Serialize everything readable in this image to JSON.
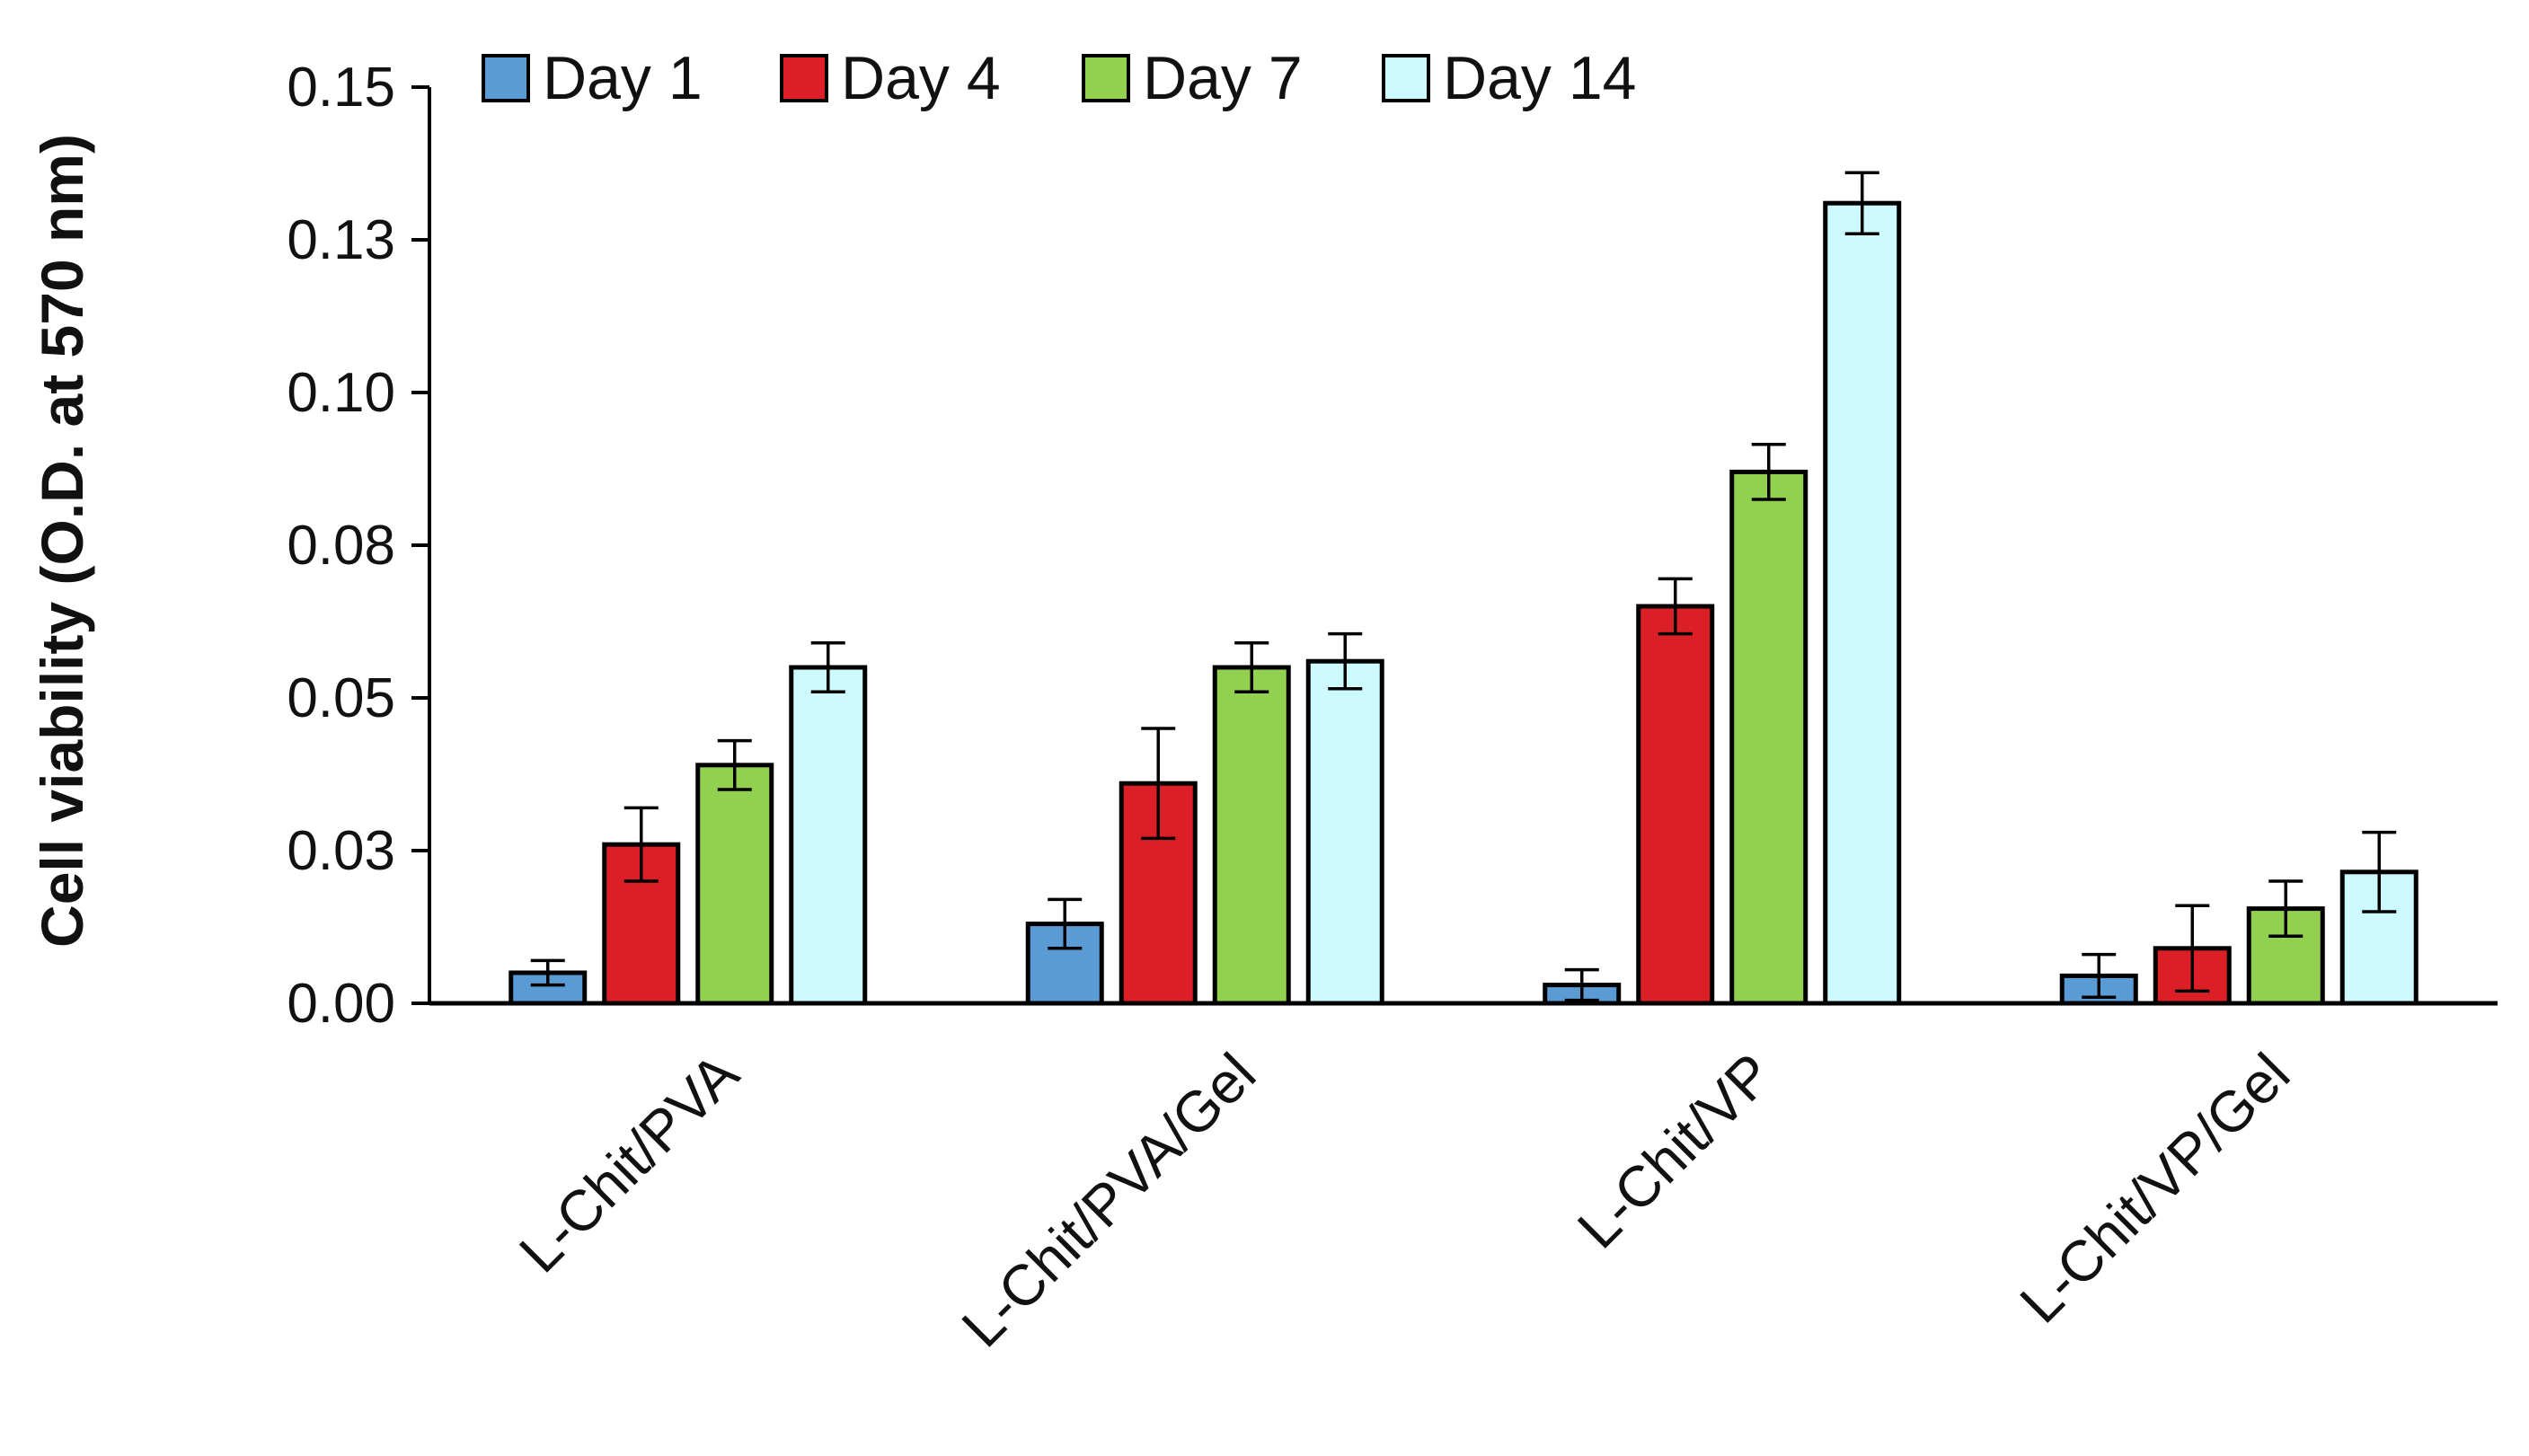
{
  "chart_data": {
    "type": "bar",
    "title": "",
    "xlabel": "",
    "ylabel": "Cell viability (O.D. at 570 nm)",
    "ylim": [
      0,
      0.15
    ],
    "yticks": [
      0,
      0.025,
      0.05,
      0.075,
      0.1,
      0.125,
      0.15
    ],
    "ytick_labels": [
      "0.00",
      "0.03",
      "0.05",
      "0.08",
      "0.10",
      "0.13",
      "0.15"
    ],
    "categories": [
      "L-Chit/PVA",
      "L-Chit/PVA/Gel",
      "L-Chit/VP",
      "L-Chit/VP/Gel"
    ],
    "legend_position": "top-left",
    "grid": false,
    "series": [
      {
        "name": "Day 1",
        "color": "#5b9bd5",
        "values": [
          0.005,
          0.013,
          0.003,
          0.0045
        ],
        "errors": [
          0.002,
          0.004,
          0.0025,
          0.0035
        ]
      },
      {
        "name": "Day 4",
        "color": "#dc1f26",
        "values": [
          0.026,
          0.036,
          0.065,
          0.009
        ],
        "errors": [
          0.006,
          0.009,
          0.0045,
          0.007
        ]
      },
      {
        "name": "Day 7",
        "color": "#92d050",
        "values": [
          0.039,
          0.055,
          0.087,
          0.0155
        ],
        "errors": [
          0.004,
          0.004,
          0.0045,
          0.0045
        ]
      },
      {
        "name": "Day 14",
        "color": "#ccfaff",
        "values": [
          0.055,
          0.056,
          0.131,
          0.0215
        ],
        "errors": [
          0.004,
          0.0045,
          0.005,
          0.0065
        ]
      }
    ]
  }
}
